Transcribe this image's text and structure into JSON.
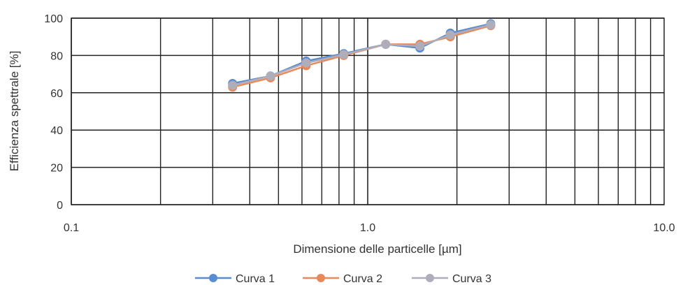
{
  "chart_data": {
    "type": "scatter",
    "title": "",
    "xlabel": "Dimensione delle particelle [µm]",
    "ylabel": "Efficienza spettrale [%]",
    "xscale": "log",
    "xlim": [
      0.1,
      10.0
    ],
    "ylim": [
      0,
      100
    ],
    "xticks": [
      "0.1",
      "1.0",
      "10.0"
    ],
    "yticks": [
      "0",
      "20",
      "40",
      "60",
      "80",
      "100"
    ],
    "grid": true,
    "legend_position": "bottom",
    "series": [
      {
        "name": "Curva 1",
        "color": "#5b8ccf",
        "x": [
          0.35,
          0.47,
          0.62,
          0.83,
          1.15,
          1.5,
          1.9,
          2.6
        ],
        "y": [
          65,
          69,
          77,
          81,
          86,
          84,
          92,
          97
        ]
      },
      {
        "name": "Curva 2",
        "color": "#e8895a",
        "x": [
          0.35,
          0.47,
          0.62,
          0.83,
          1.15,
          1.5,
          1.9,
          2.6
        ],
        "y": [
          63,
          68,
          74.5,
          80,
          86,
          86,
          90,
          96
        ]
      },
      {
        "name": "Curva 3",
        "color": "#b0adbb",
        "x": [
          0.35,
          0.47,
          0.62,
          0.83,
          1.15,
          1.5,
          1.9,
          2.6
        ],
        "y": [
          64,
          69,
          76,
          80.5,
          86,
          85,
          91,
          96.5
        ]
      }
    ]
  }
}
